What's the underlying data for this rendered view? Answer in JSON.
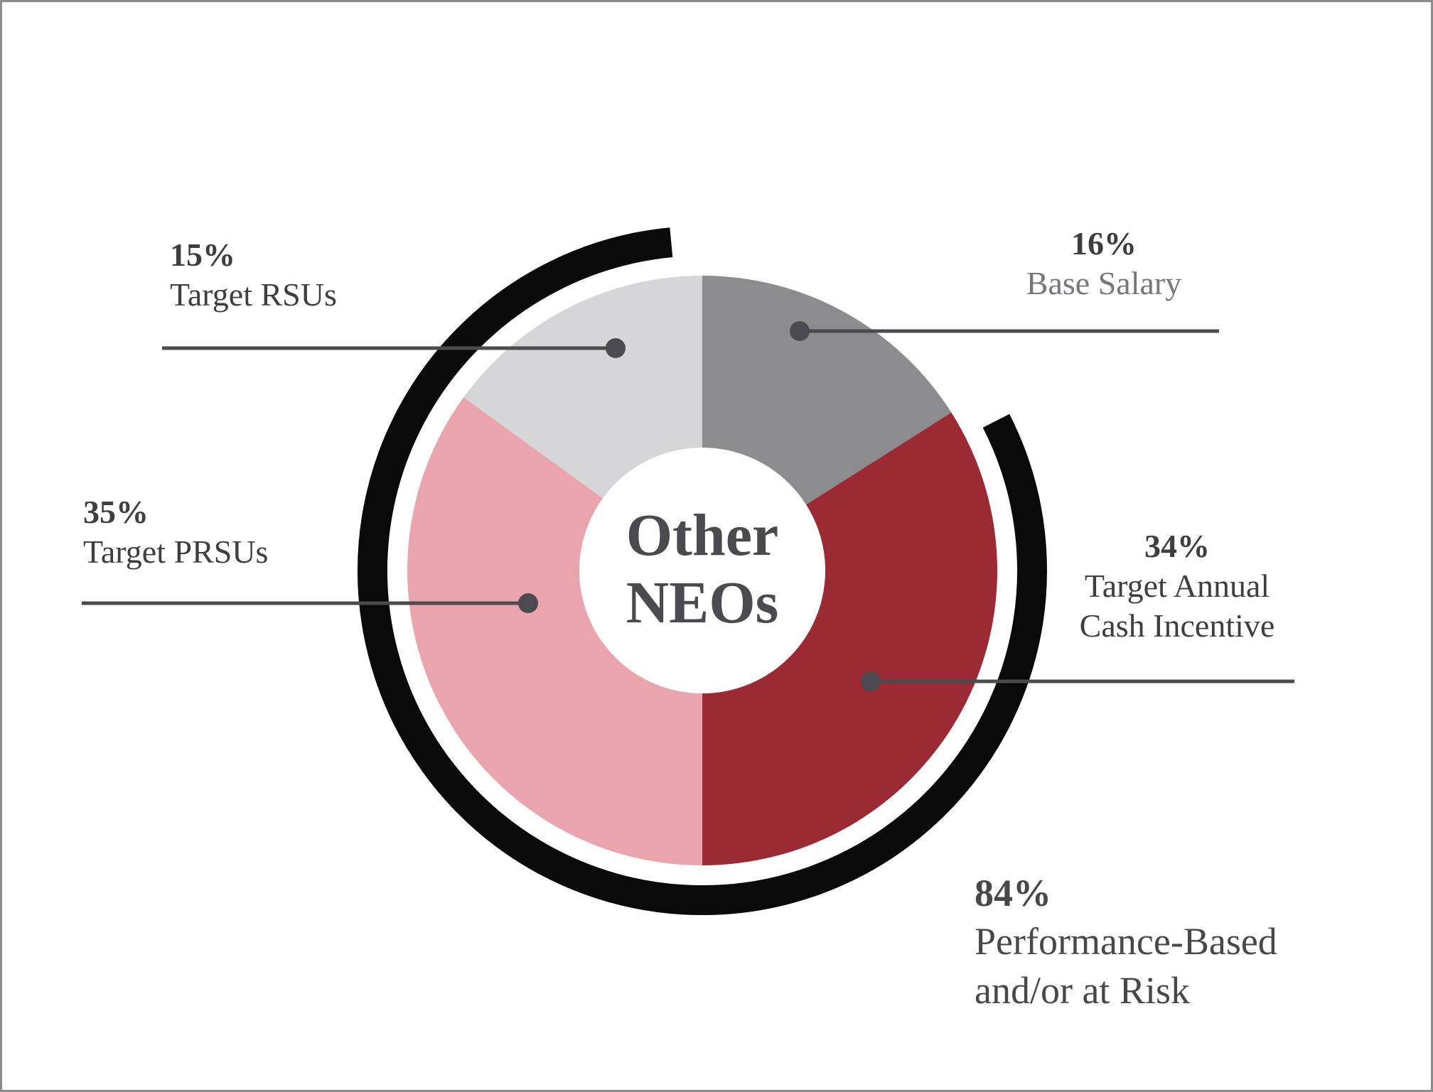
{
  "page": {
    "background": "#ffffff",
    "border_color": "#8C8C8C"
  },
  "chart_data": {
    "type": "pie",
    "variant": "donut-with-outer-ring",
    "center_label": {
      "line1": "Other",
      "line2": "NEOs"
    },
    "units": "%",
    "start_angle_deg": 0,
    "direction": "clockwise",
    "legend_position": "callouts",
    "segments": [
      {
        "name": "base-salary",
        "label": "Base Salary",
        "pct_label": "16%",
        "value": 16,
        "color": "#8C8B8E"
      },
      {
        "name": "target-annual-cash-incentive",
        "label_lines": [
          "Target Annual",
          "Cash Incentive"
        ],
        "pct_label": "34%",
        "value": 34,
        "color": "#9B2A35"
      },
      {
        "name": "target-prsus",
        "label": "Target PRSUs",
        "pct_label": "35%",
        "value": 35,
        "color": "#EAA4AC"
      },
      {
        "name": "target-rsus",
        "label": "Target RSUs",
        "pct_label": "15%",
        "value": 15,
        "color": "#D6D5D7"
      }
    ],
    "outer_ring": {
      "pct_label": "84%",
      "label_lines": [
        "Performance-Based",
        "and/or at Risk"
      ],
      "value": 84,
      "color": "#0B0A0A",
      "covers": [
        "target-annual-cash-incentive",
        "target-prsus",
        "target-rsus"
      ]
    }
  },
  "styles": {
    "leader_color": "#4B4A4E",
    "pct_text_color": "#3E3D40",
    "muted_label_color": "#77767A",
    "center_text_color": "#4B4A4E"
  }
}
